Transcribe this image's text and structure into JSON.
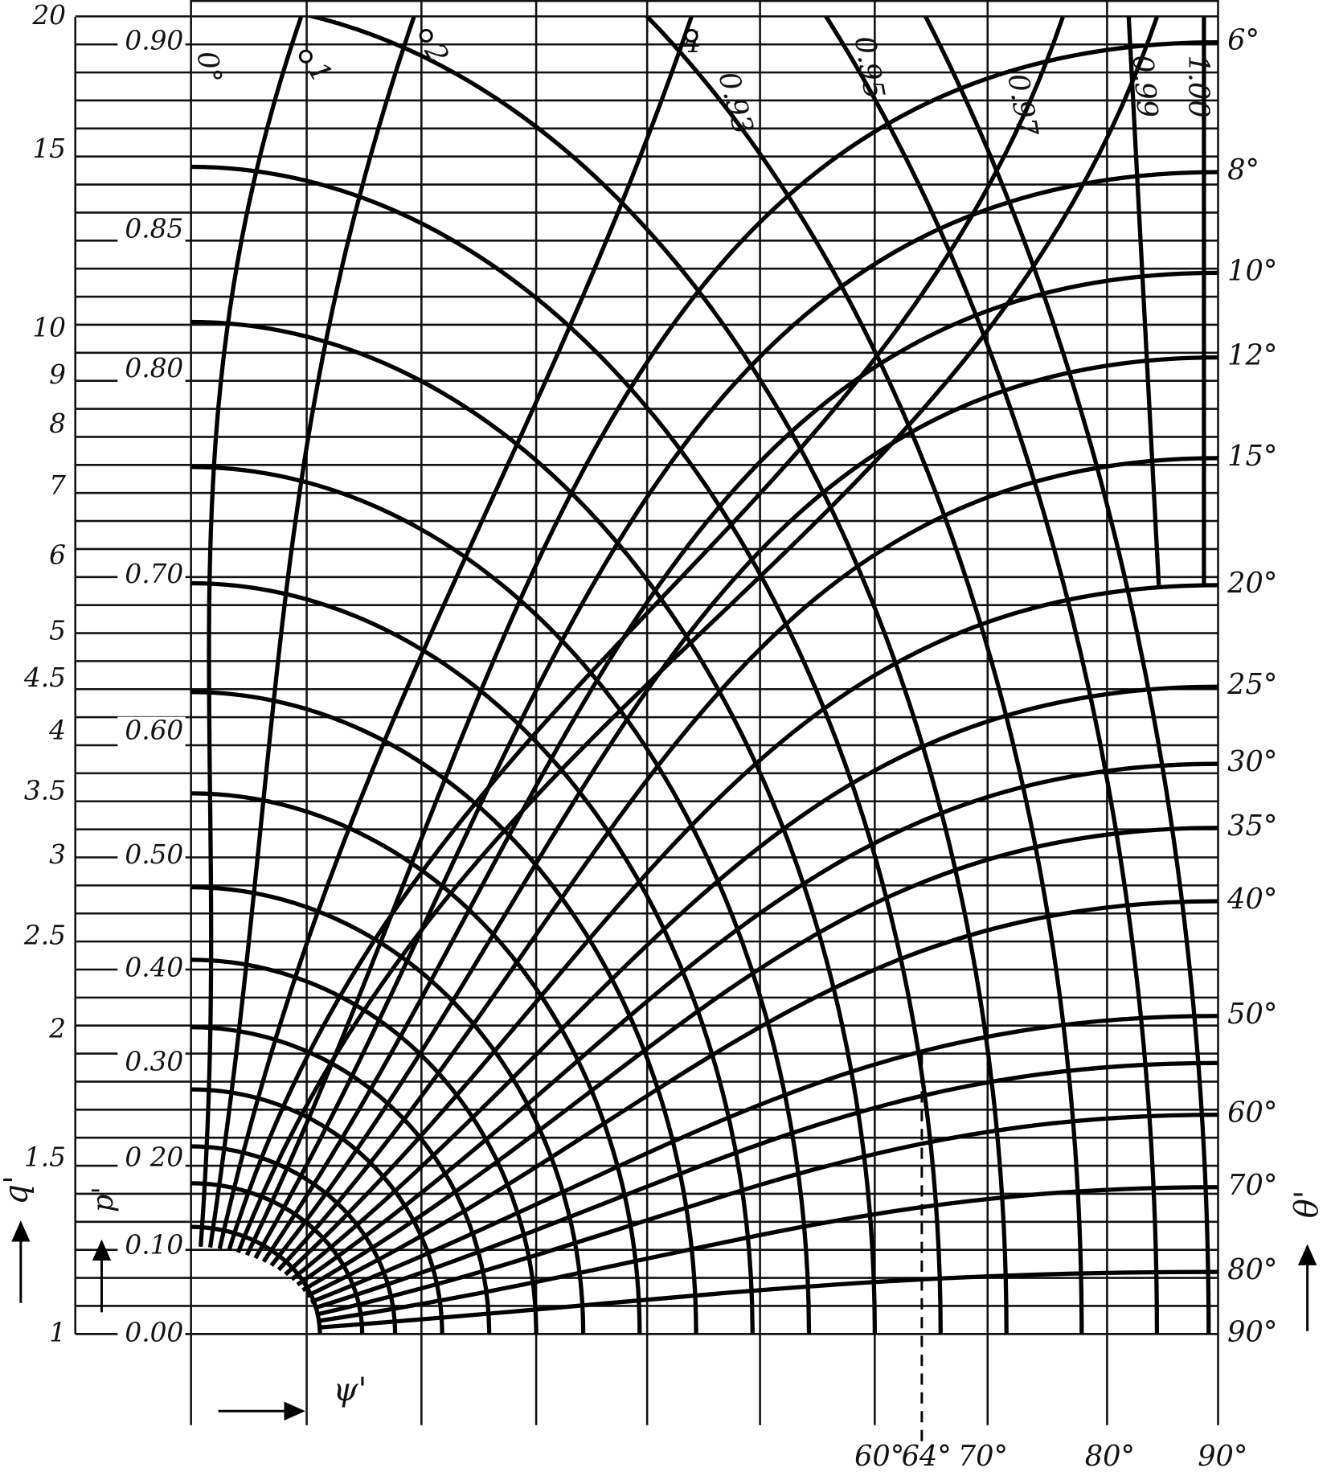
{
  "left_outer_scale": {
    "axis_label": "q'",
    "labels": [
      "20",
      "15",
      "10",
      "9",
      "8",
      "7",
      "6",
      "5",
      "4.5",
      "4",
      "3.5",
      "3",
      "2.5",
      "2",
      "1.5",
      "1"
    ]
  },
  "left_inner_scale": {
    "axis_label": "p'",
    "labels": [
      "0.90",
      "0.85",
      "0.80",
      "0.70",
      "0.60",
      "0.50",
      "0.40",
      "0.30",
      "0 20",
      "0.10",
      "0.00"
    ]
  },
  "right_scale": {
    "axis_label": "θ'",
    "labels": [
      "6°",
      "8°",
      "10°",
      "12°",
      "15°",
      "20°",
      "25°",
      "30°",
      "35°",
      "40°",
      "50°",
      "60°",
      "70°",
      "80°",
      "90°"
    ]
  },
  "bottom_scale": {
    "axis_label": "ψ'",
    "labels": [
      "60°",
      "64°",
      "70°",
      "80°",
      "90°"
    ]
  },
  "curve_labels": [
    "0°",
    "1",
    "2",
    "4",
    "0.93",
    "0.95",
    "0.97",
    "0.99",
    "1.00"
  ]
}
